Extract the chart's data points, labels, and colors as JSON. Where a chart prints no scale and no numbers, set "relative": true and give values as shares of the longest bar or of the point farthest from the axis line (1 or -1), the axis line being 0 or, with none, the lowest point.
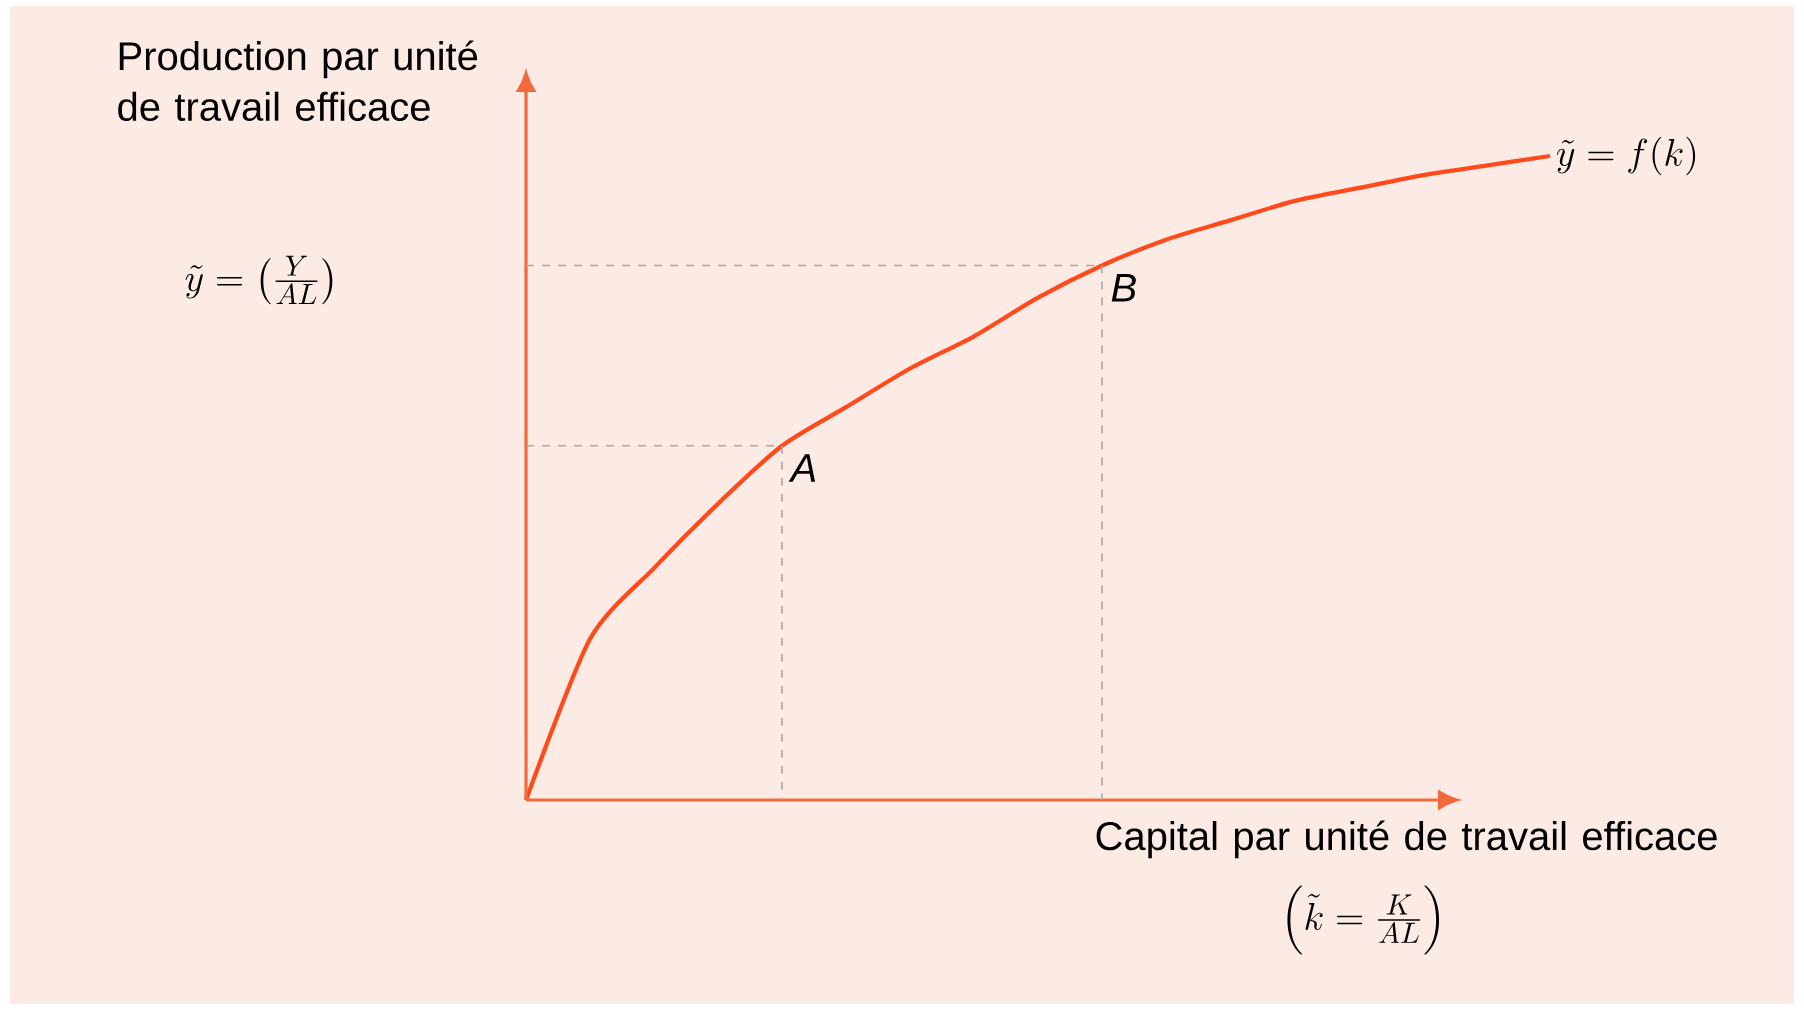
{
  "chart_data": {
    "type": "line",
    "relative": true,
    "legend": false,
    "marker": "none",
    "line_style": "solid",
    "xlabel": "Capital par unité de travail efficace",
    "ylabel": "Production par unité de travail efficace",
    "categories": [
      null,
      null,
      null,
      null,
      null,
      null,
      null,
      null,
      null,
      null,
      null,
      null,
      null,
      null,
      null,
      null,
      null
    ],
    "series": [
      {
        "name": "\\tilde{y} = f(k)",
        "color": "#ff4a1c",
        "values": [
          0,
          0.25,
          0.36,
          0.46,
          0.55,
          0.61,
          0.67,
          0.72,
          0.78,
          0.83,
          0.87,
          0.9,
          0.93,
          0.95,
          0.97,
          0.985,
          1
        ]
      }
    ],
    "annotations": [
      {
        "text": "A",
        "y": 0.55
      },
      {
        "text": "B",
        "y": 0.83
      },
      "\\tilde{y} = \\left(\\frac{Y}{AL}\\right)",
      "\\left(\\tilde{k} = \\frac{K}{AL}\\right)"
    ]
  }
}
